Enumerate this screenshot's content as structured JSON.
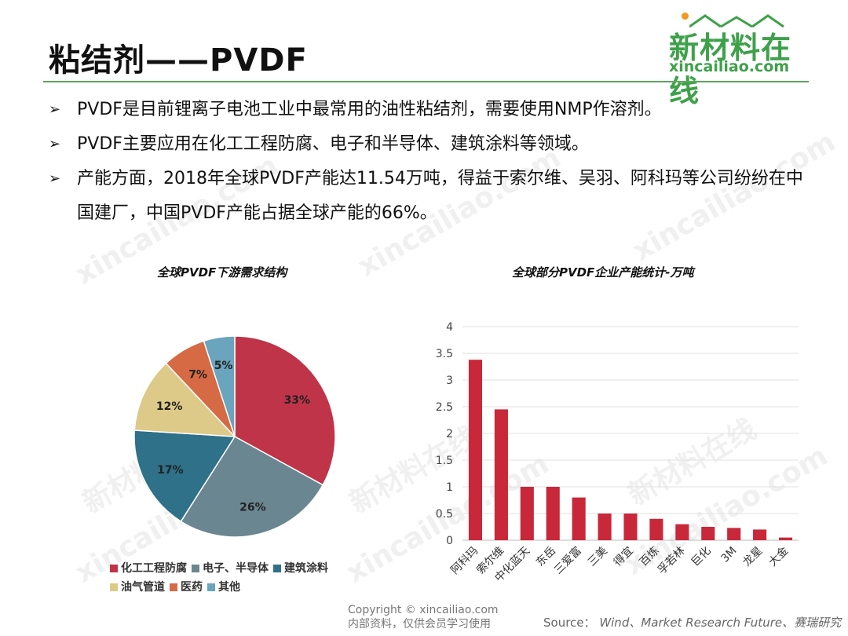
{
  "header": {
    "title": "粘结剂——PVDF",
    "logo_cn": "新材料在线",
    "logo_en": "xincailiao.com"
  },
  "bullets": [
    {
      "arrow": "➢",
      "text": "PVDF是目前锂离子电池工业中最常用的油性粘结剂，需要使用NMP作溶剂。"
    },
    {
      "arrow": "➢",
      "text": "PVDF主要应用在化工工程防腐、电子和半导体、建筑涂料等领域。"
    },
    {
      "arrow": "➢",
      "text": "产能方面，2018年全球PVDF产能达11.54万吨，得益于索尔维、吴羽、阿科玛等公司纷纷在中国建厂，中国PVDF产能占据全球产能的66%。"
    }
  ],
  "chart_data": [
    {
      "type": "pie",
      "title": "全球PVDF下游需求结构",
      "categories": [
        "化工工程防腐",
        "电子、半导体",
        "建筑涂料",
        "油气管道",
        "医药",
        "其他"
      ],
      "values": [
        33,
        26,
        17,
        12,
        7,
        5
      ],
      "labels": [
        "33%",
        "26%",
        "17%",
        "12%",
        "7%",
        "5%"
      ],
      "colors": [
        "#bf3448",
        "#6a8791",
        "#2e7189",
        "#ddca88",
        "#d66a44",
        "#6aa4bd"
      ],
      "legend": "bottom"
    },
    {
      "type": "bar",
      "title": "全球部分PVDF企业产能统计-万吨",
      "categories": [
        "阿科玛",
        "索尔维",
        "中化蓝天",
        "东岳",
        "三爱富",
        "三美",
        "得宜",
        "百炼",
        "孚若林",
        "巨化",
        "3M",
        "龙星",
        "大金"
      ],
      "values": [
        3.38,
        2.45,
        1.0,
        1.0,
        0.8,
        0.5,
        0.5,
        0.4,
        0.3,
        0.25,
        0.23,
        0.2,
        0.05
      ],
      "ylim": [
        0,
        4
      ],
      "yticks": [
        "0",
        "0.5",
        "1",
        "1.5",
        "2",
        "2.5",
        "3",
        "3.5",
        "4"
      ],
      "color": "#c8283a",
      "grid": true
    }
  ],
  "footer": {
    "copyright": "Copyright © xincailiao.com",
    "note": "内部资料，仅供会员学习使用",
    "source_label": "Source：",
    "source_text": "Wind、Market Research Future、赛瑞研究"
  },
  "watermark": {
    "cn": "新材料在线",
    "en": "xincailiao.com"
  }
}
